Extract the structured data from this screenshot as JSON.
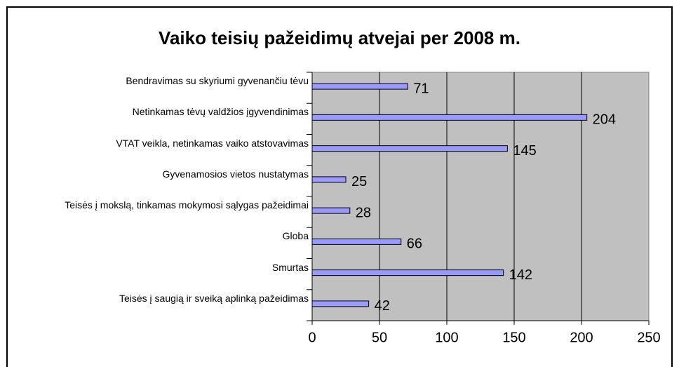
{
  "chart_data": {
    "type": "bar",
    "orientation": "horizontal",
    "title": "Vaiko teisių pažeidimų atvejai per 2008 m.",
    "categories": [
      "Bendravimas su skyriumi gyvenančiu tėvu",
      "Netinkamas tėvų valdžios įgyvendinimas",
      "VTAT veikla, netinkamas vaiko atstovavimas",
      "Gyvenamosios vietos nustatymas",
      "Teisės į mokslą, tinkamas mokymosi sąlygas pažeidimai",
      "Globa",
      "Smurtas",
      "Teisės į saugią ir sveiką aplinką pažeidimas"
    ],
    "values": [
      71,
      204,
      145,
      25,
      28,
      66,
      142,
      42
    ],
    "color": "#9999ff",
    "xlim": [
      0,
      250
    ],
    "xticks": [
      0,
      50,
      100,
      150,
      200,
      250
    ],
    "grid": true
  }
}
